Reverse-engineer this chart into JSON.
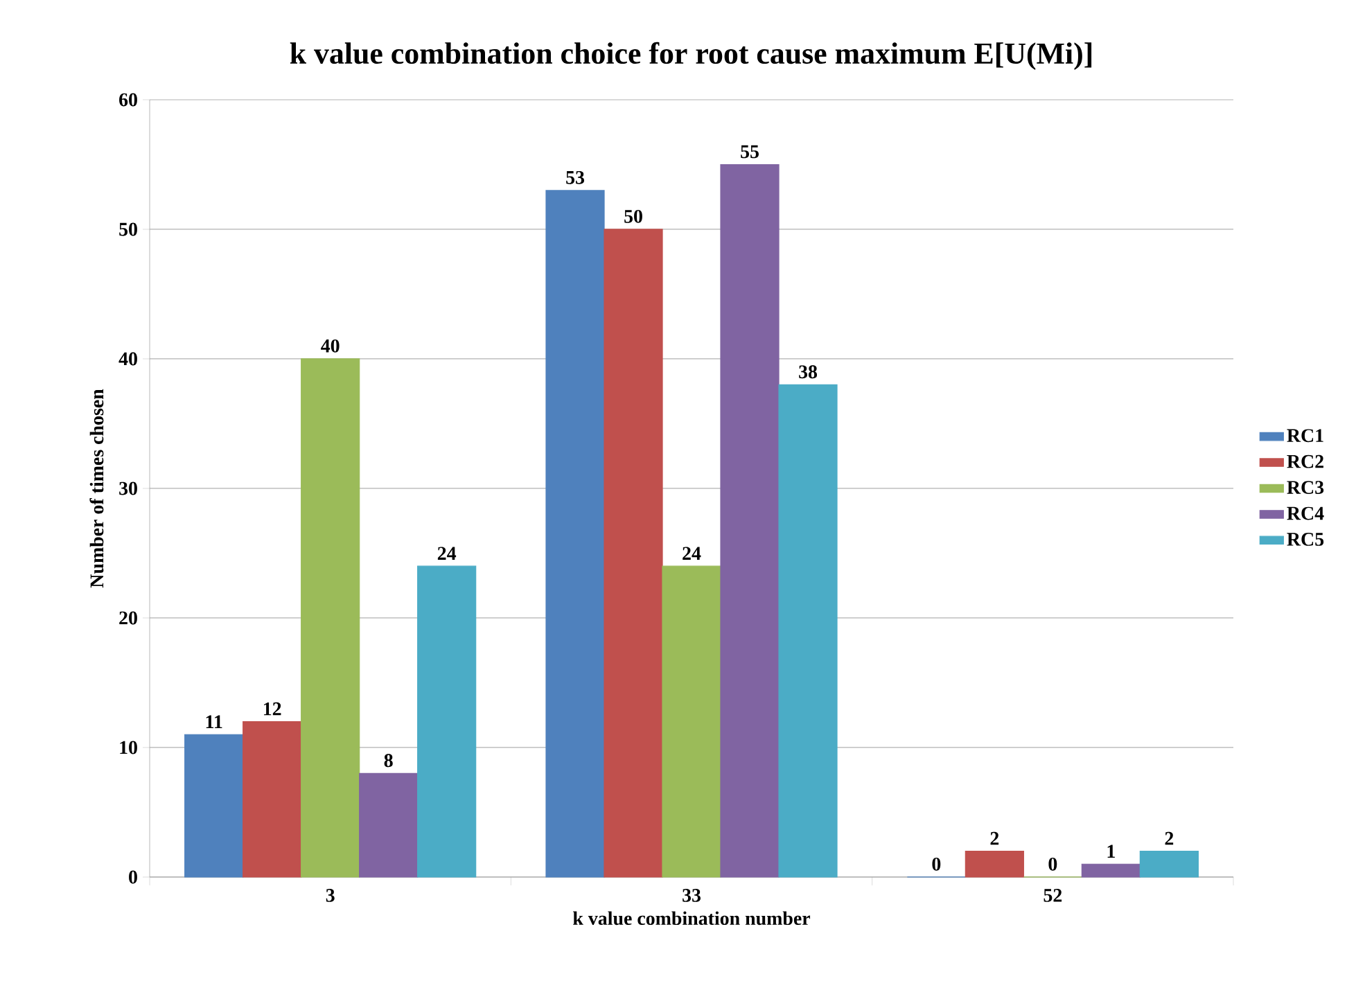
{
  "chart_data": {
    "type": "bar",
    "title": "k value combination choice for root cause maximum E[U(Mi)]",
    "xlabel": "k value combination number",
    "ylabel": "Number of times chosen",
    "categories": [
      "3",
      "33",
      "52"
    ],
    "series": [
      {
        "name": "RC1",
        "color": "#4f81bd",
        "values": [
          11,
          53,
          0
        ]
      },
      {
        "name": "RC2",
        "color": "#c0504d",
        "values": [
          12,
          50,
          2
        ]
      },
      {
        "name": "RC3",
        "color": "#9bbb59",
        "values": [
          40,
          24,
          0
        ]
      },
      {
        "name": "RC4",
        "color": "#8064a2",
        "values": [
          8,
          55,
          1
        ]
      },
      {
        "name": "RC5",
        "color": "#4bacc6",
        "values": [
          24,
          38,
          2
        ]
      }
    ],
    "ylim": [
      0,
      60
    ],
    "yticks": [
      0,
      10,
      20,
      30,
      40,
      50,
      60
    ],
    "grid": "y",
    "legend": "right",
    "data_labels": true
  }
}
